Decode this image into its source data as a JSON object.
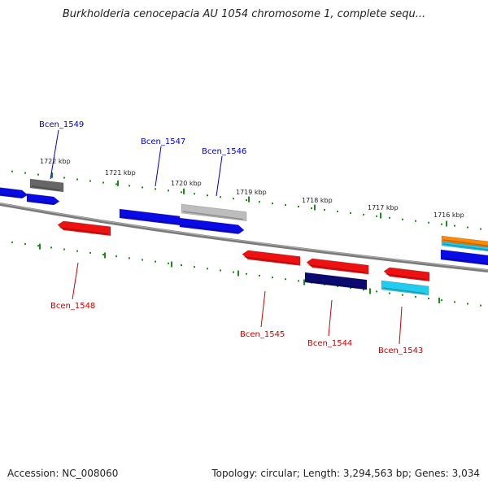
{
  "title": "Burkholderia cenocepacia AU 1054 chromosome 1, complete sequ...",
  "footer": {
    "accession": "Accession: NC_008060",
    "summary": "Topology: circular; Length: 3,294,563 bp; Genes: 3,034"
  },
  "ticks": [
    {
      "label": "1722 kbp"
    },
    {
      "label": "1721 kbp"
    },
    {
      "label": "1720 kbp"
    },
    {
      "label": "1719 kbp"
    },
    {
      "label": "1718 kbp"
    },
    {
      "label": "1717 kbp"
    },
    {
      "label": "1716 kbp"
    }
  ],
  "gene_labels": [
    {
      "name": "Bcen_1549",
      "strand": "forward"
    },
    {
      "name": "Bcen_1547",
      "strand": "forward"
    },
    {
      "name": "Bcen_1546",
      "strand": "forward"
    },
    {
      "name": "Bcen_1548",
      "strand": "reverse"
    },
    {
      "name": "Bcen_1545",
      "strand": "reverse"
    },
    {
      "name": "Bcen_1544",
      "strand": "reverse"
    },
    {
      "name": "Bcen_1543",
      "strand": "reverse"
    }
  ],
  "colors": {
    "forward_label": "#0000cc",
    "reverse_label": "#cc0000",
    "tick": "#1a8c1a",
    "backbone": "#808080",
    "blue": "#0a0ae6",
    "red": "#ee1111",
    "navy": "#0a0a70",
    "gray_dark": "#666666",
    "gray_light": "#bdbdbd",
    "cyan": "#22ccee",
    "orange": "#ff8800"
  }
}
